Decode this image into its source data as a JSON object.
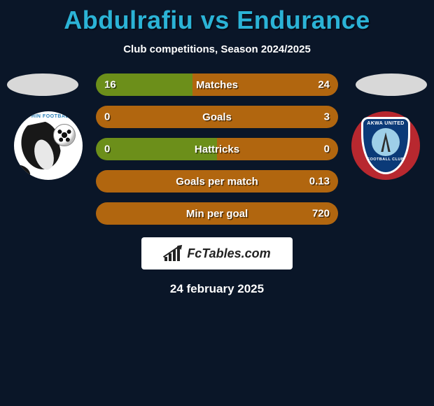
{
  "title": "Abdulrafiu vs Endurance",
  "subtitle": "Club competitions, Season 2024/2025",
  "date": "24 february 2025",
  "brand": "FcTables.com",
  "colors": {
    "title": "#2bb3d6",
    "bg": "#0a1628",
    "left_bar": "#6c8f1a",
    "right_bar": "#b1660f",
    "badge_left_bg": "#ffffff",
    "badge_right_bg": "#b8282f"
  },
  "left_club": {
    "ring_text": "PHIN FOOTBAL",
    "name": "Dolphin FC"
  },
  "right_club": {
    "top_text": "AKWA UNITED",
    "bottom_text": "FOOTBALL CLUB",
    "name": "Akwa United"
  },
  "rows": [
    {
      "label": "Matches",
      "left": "16",
      "right": "24",
      "left_pct": 40,
      "right_pct": 60
    },
    {
      "label": "Goals",
      "left": "0",
      "right": "3",
      "left_pct": 0,
      "right_pct": 100
    },
    {
      "label": "Hattricks",
      "left": "0",
      "right": "0",
      "left_pct": 50,
      "right_pct": 50
    },
    {
      "label": "Goals per match",
      "left": "",
      "right": "0.13",
      "left_pct": 0,
      "right_pct": 100
    },
    {
      "label": "Min per goal",
      "left": "",
      "right": "720",
      "left_pct": 0,
      "right_pct": 100
    }
  ]
}
